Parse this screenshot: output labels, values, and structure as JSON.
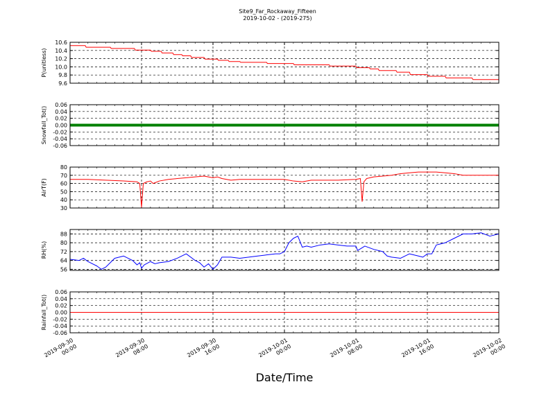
{
  "title": "Site9_Far_Rockaway_Fifteen",
  "subtitle": "2019-10-02 - (2019-275)",
  "xlabel": "Date/Time",
  "x_ticks": [
    {
      "x": 0,
      "line1": "2019-09-30",
      "line2": "00:00"
    },
    {
      "x": 8,
      "line1": "2019-09-30",
      "line2": "08:00"
    },
    {
      "x": 16,
      "line1": "2019-09-30",
      "line2": "16:00"
    },
    {
      "x": 24,
      "line1": "2019-10-01",
      "line2": "00:00"
    },
    {
      "x": 32,
      "line1": "2019-10-01",
      "line2": "08:00"
    },
    {
      "x": 40,
      "line1": "2019-10-01",
      "line2": "16:00"
    },
    {
      "x": 48,
      "line1": "2019-10-02",
      "line2": "00:00"
    }
  ],
  "chart_data": [
    {
      "type": "line",
      "ylabel": "P(unitless)",
      "color": "#ff0000",
      "ylim": [
        9.6,
        10.6
      ],
      "yticks": [
        "9.6",
        "9.8",
        "10.0",
        "10.2",
        "10.4",
        "10.6"
      ],
      "xlim": [
        0,
        48
      ],
      "x": [
        0,
        1.7,
        1.8,
        4.5,
        4.6,
        7.2,
        7.3,
        9.0,
        9.1,
        10.2,
        10.3,
        11.5,
        11.6,
        12.5,
        12.6,
        13.5,
        13.6,
        15.0,
        15.1,
        16.5,
        16.6,
        17.7,
        17.8,
        19.0,
        19.1,
        22.0,
        22.1,
        25.0,
        25.1,
        29.0,
        29.1,
        32.0,
        32.1,
        33.5,
        33.6,
        34.5,
        34.6,
        36.5,
        36.6,
        38.0,
        38.1,
        40.0,
        40.1,
        42.0,
        42.1,
        45.0,
        45.1,
        48.0
      ],
      "y": [
        10.52,
        10.52,
        10.48,
        10.48,
        10.45,
        10.45,
        10.41,
        10.41,
        10.38,
        10.38,
        10.34,
        10.34,
        10.3,
        10.3,
        10.27,
        10.27,
        10.23,
        10.23,
        10.19,
        10.19,
        10.16,
        10.16,
        10.13,
        10.13,
        10.11,
        10.11,
        10.08,
        10.08,
        10.05,
        10.05,
        10.02,
        10.02,
        9.98,
        9.98,
        9.95,
        9.95,
        9.91,
        9.91,
        9.87,
        9.87,
        9.81,
        9.81,
        9.77,
        9.77,
        9.73,
        9.73,
        9.69,
        9.69
      ]
    },
    {
      "type": "line",
      "ylabel": "Snowfall_Tot()",
      "color": "#008000",
      "line_width": 4,
      "ylim": [
        -0.06,
        0.06
      ],
      "yticks": [
        "-0.06",
        "-0.04",
        "-0.02",
        "0.00",
        "0.02",
        "0.04",
        "0.06"
      ],
      "xlim": [
        0,
        48
      ],
      "x": [
        0,
        48
      ],
      "y": [
        0,
        0
      ]
    },
    {
      "type": "line",
      "ylabel": "AirT(F)",
      "color": "#ff0000",
      "ylim": [
        30,
        80
      ],
      "yticks": [
        "30",
        "40",
        "50",
        "60",
        "70",
        "80"
      ],
      "xlim": [
        0,
        48
      ],
      "x": [
        0,
        2,
        4,
        6,
        7.5,
        7.8,
        8.0,
        8.2,
        8.6,
        9.0,
        9.3,
        10,
        11,
        12,
        13,
        14,
        15,
        16,
        16.5,
        17,
        18,
        19,
        20,
        22,
        24,
        25,
        26,
        27,
        28,
        30,
        32,
        32.5,
        32.7,
        32.9,
        33.2,
        34,
        35,
        36,
        37,
        38,
        39,
        40,
        41,
        42,
        43,
        44,
        45,
        46,
        47,
        48
      ],
      "y": [
        65,
        65,
        64,
        63,
        62,
        60,
        31,
        60,
        62,
        63,
        60,
        63,
        65,
        66,
        67,
        68,
        69,
        67,
        68,
        66,
        64,
        65,
        65,
        65,
        65,
        63,
        62,
        64,
        64,
        64,
        65,
        66,
        38,
        62,
        66,
        68,
        69,
        70,
        72,
        73,
        74,
        74,
        74,
        73,
        72,
        70,
        70,
        70,
        70,
        70
      ]
    },
    {
      "type": "line",
      "ylabel": "RH(%)",
      "color": "#0000ff",
      "ylim": [
        55,
        92
      ],
      "yticks": [
        "56",
        "64",
        "72",
        "80",
        "88"
      ],
      "xlim": [
        0,
        48
      ],
      "x": [
        0,
        1,
        1.5,
        2,
        3,
        3.5,
        4,
        4.5,
        5,
        6,
        7,
        7.5,
        7.8,
        8.0,
        8.3,
        9,
        9.5,
        10,
        11,
        12,
        13,
        14,
        14.5,
        15,
        15.5,
        16,
        16.5,
        17,
        18,
        19,
        20,
        21,
        22,
        23,
        23.5,
        24,
        24.5,
        25,
        25.5,
        26,
        26.5,
        27,
        28,
        29,
        30,
        31,
        32,
        32.2,
        33,
        34,
        35,
        35.5,
        36,
        37,
        38,
        39,
        39.5,
        40,
        40.5,
        41,
        42,
        43,
        44,
        45,
        46,
        47,
        48
      ],
      "y": [
        65,
        64,
        66,
        63,
        59,
        56,
        58,
        62,
        66,
        68,
        64,
        60,
        62,
        57,
        60,
        63,
        61,
        62,
        63,
        66,
        70,
        64,
        62,
        58,
        61,
        56,
        60,
        67,
        67,
        66,
        67,
        68,
        69,
        70,
        70,
        72,
        80,
        84,
        86,
        76,
        77,
        76,
        78,
        79,
        78,
        77,
        77,
        73,
        77,
        74,
        72,
        68,
        67,
        66,
        70,
        68,
        67,
        70,
        70,
        78,
        80,
        84,
        88,
        88,
        89,
        86,
        88
      ]
    },
    {
      "type": "line",
      "ylabel": "Rainfall_Tot()",
      "color": "#ff0000",
      "ylim": [
        -0.06,
        0.06
      ],
      "yticks": [
        "-0.06",
        "-0.04",
        "-0.02",
        "0.00",
        "0.02",
        "0.04",
        "0.06"
      ],
      "xlim": [
        0,
        48
      ],
      "x": [
        0,
        48
      ],
      "y": [
        0,
        0
      ]
    }
  ]
}
